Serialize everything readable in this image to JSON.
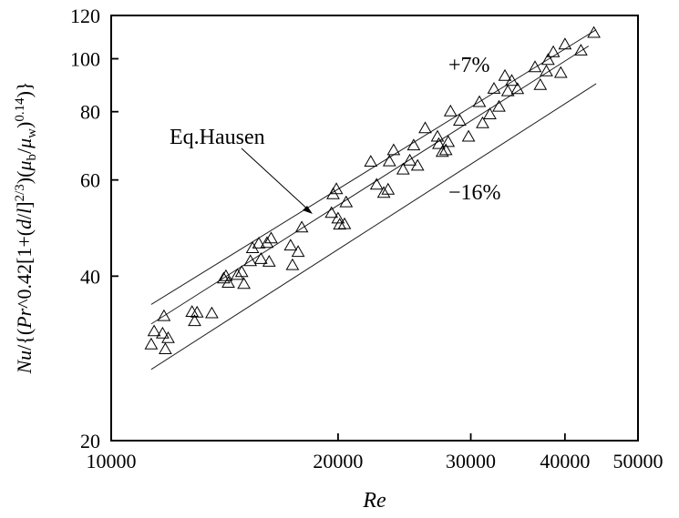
{
  "chart_data": {
    "type": "scatter",
    "xlabel": "Re",
    "ylabel_parts": [
      "Nu",
      "/{(",
      "Pr",
      "^0.42",
      "[1+(",
      "d",
      "/",
      "l",
      "]",
      "2/3",
      ")(",
      "μ",
      "b",
      "/",
      "μ",
      "w",
      ")",
      "0.14",
      ")}"
    ],
    "x_scale": "log",
    "y_scale": "log",
    "xlim": [
      10000,
      50000
    ],
    "ylim": [
      20,
      120
    ],
    "x_ticks": [
      10000,
      20000,
      30000,
      40000,
      50000
    ],
    "x_tick_labels": [
      "10000",
      "20000",
      "30000",
      "40000",
      "50000"
    ],
    "y_ticks": [
      20,
      40,
      60,
      80,
      100,
      120
    ],
    "y_tick_labels": [
      "20",
      "40",
      "60",
      "80",
      "100",
      "120"
    ],
    "grid": false,
    "marker": "open-triangle",
    "points": [
      [
        11300,
        30.0
      ],
      [
        11400,
        31.7
      ],
      [
        11700,
        31.4
      ],
      [
        11900,
        30.8
      ],
      [
        11800,
        29.4
      ],
      [
        11750,
        33.8
      ],
      [
        12800,
        34.4
      ],
      [
        13000,
        34.3
      ],
      [
        12900,
        33.1
      ],
      [
        13600,
        34.2
      ],
      [
        14100,
        39.6
      ],
      [
        14200,
        40.0
      ],
      [
        14300,
        38.9
      ],
      [
        14700,
        40.2
      ],
      [
        14900,
        40.7
      ],
      [
        15000,
        38.7
      ],
      [
        15300,
        42.6
      ],
      [
        15400,
        45.0
      ],
      [
        15700,
        45.9
      ],
      [
        15800,
        43.0
      ],
      [
        16100,
        46.0
      ],
      [
        16300,
        46.9
      ],
      [
        16200,
        42.5
      ],
      [
        17300,
        45.5
      ],
      [
        17400,
        41.9
      ],
      [
        17700,
        44.3
      ],
      [
        17900,
        49.1
      ],
      [
        19600,
        52.2
      ],
      [
        19700,
        56.5
      ],
      [
        19900,
        57.7
      ],
      [
        20000,
        51.0
      ],
      [
        20100,
        49.7
      ],
      [
        20400,
        49.8
      ],
      [
        20500,
        54.6
      ],
      [
        22100,
        64.8
      ],
      [
        22500,
        58.8
      ],
      [
        23000,
        56.8
      ],
      [
        23300,
        57.6
      ],
      [
        23400,
        64.9
      ],
      [
        23700,
        68.0
      ],
      [
        24400,
        62.7
      ],
      [
        24900,
        65.1
      ],
      [
        25200,
        69.4
      ],
      [
        25500,
        63.7
      ],
      [
        26100,
        74.6
      ],
      [
        27100,
        72.0
      ],
      [
        27200,
        69.8
      ],
      [
        27500,
        67.5
      ],
      [
        27800,
        68.0
      ],
      [
        28000,
        70.4
      ],
      [
        28200,
        80.1
      ],
      [
        29000,
        77.0
      ],
      [
        29800,
        72.0
      ],
      [
        30800,
        83.3
      ],
      [
        31100,
        76.2
      ],
      [
        31800,
        79.1
      ],
      [
        32200,
        88.1
      ],
      [
        32700,
        81.7
      ],
      [
        33300,
        93.0
      ],
      [
        33600,
        87.2
      ],
      [
        34000,
        91.1
      ],
      [
        34600,
        88.0
      ],
      [
        36500,
        96.5
      ],
      [
        37100,
        89.5
      ],
      [
        37800,
        94.8
      ],
      [
        38000,
        99.5
      ],
      [
        38600,
        102.8
      ],
      [
        39500,
        94.2
      ],
      [
        40000,
        106.2
      ],
      [
        42000,
        103.5
      ],
      [
        43700,
        111.5
      ]
    ],
    "lines": [
      {
        "name": "+7%",
        "from": [
          11300,
          35.5
        ],
        "to": [
          44000,
          113.0
        ]
      },
      {
        "name": "Eq.Hausen",
        "from": [
          11300,
          32.7
        ],
        "to": [
          43000,
          105.5
        ]
      },
      {
        "name": "−16%",
        "from": [
          11300,
          27.0
        ],
        "to": [
          44000,
          90.0
        ]
      }
    ],
    "annotations": [
      {
        "text": "+7%"
      },
      {
        "text": "Eq.Hausen"
      },
      {
        "text": "−16%"
      }
    ]
  }
}
